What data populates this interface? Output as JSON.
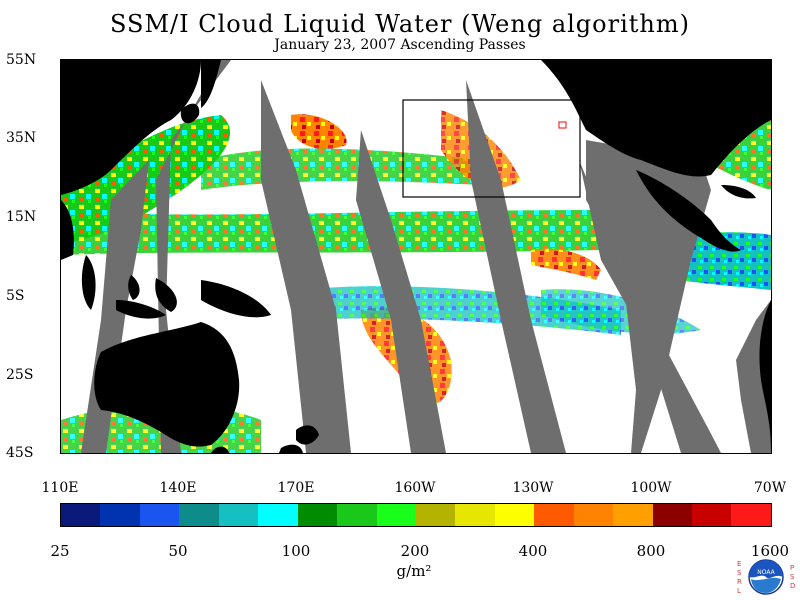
{
  "title": "SSM/I Cloud Liquid Water (Weng algorithm)",
  "subtitle": "January 23, 2007  Ascending Passes",
  "lat_labels": [
    "55N",
    "35N",
    "15N",
    "5S",
    "25S",
    "45S"
  ],
  "lon_labels": [
    "110E",
    "140E",
    "170E",
    "160W",
    "130W",
    "100W",
    "70W"
  ],
  "colorbar": {
    "colors": [
      "#0a1a7a",
      "#0033b0",
      "#1a55f0",
      "#0e8c8c",
      "#14c0c0",
      "#00ffff",
      "#008c00",
      "#1ac81a",
      "#1aff1a",
      "#b4b400",
      "#e6e600",
      "#ffff00",
      "#ff5a00",
      "#ff8200",
      "#ffa000",
      "#8c0000",
      "#c80000",
      "#ff1a1a"
    ],
    "tick_labels": [
      "25",
      "50",
      "100",
      "200",
      "400",
      "800",
      "1600"
    ]
  },
  "units": "g/m²",
  "logo": {
    "left_letters": "ESRL",
    "right_letters": "PSD",
    "center_text": "NOAA"
  }
}
